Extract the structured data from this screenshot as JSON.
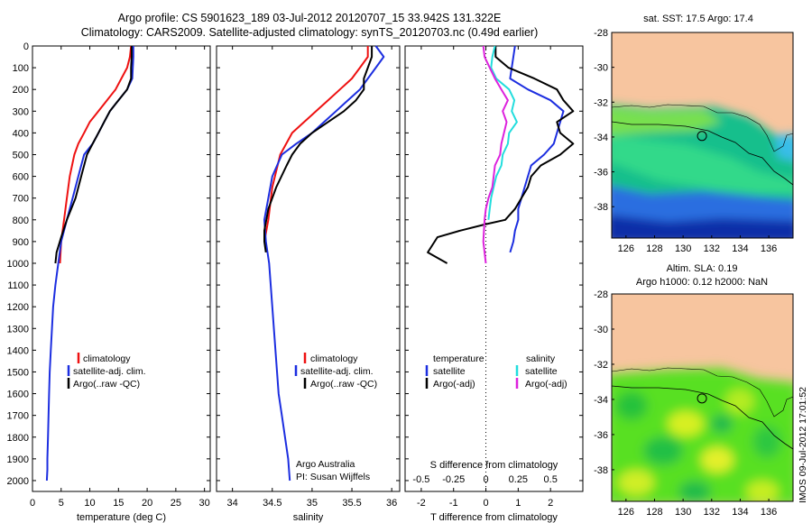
{
  "header": {
    "line1": "Argo profile: CS 5901623_189 03-Jul-2012 20120707_15 33.942S 131.322E",
    "line2": "Climatology: CARS2009. Satellite-adjusted climatology: synTS_20120703.nc (0.49d earlier)"
  },
  "colors": {
    "climatology": "#ee1111",
    "satellite": "#1c2ee0",
    "argo": "#000000",
    "salinity_satellite": "#22dddd",
    "salinity_argo": "#dd22dd",
    "land": "#f7c59f"
  },
  "chart_data": [
    {
      "type": "line",
      "panel": "temperature",
      "xlabel": "temperature (deg C)",
      "ylabel": "",
      "xlim": [
        0,
        31
      ],
      "ylim": [
        2050,
        0
      ],
      "xticks": [
        "0",
        "5",
        "10",
        "15",
        "20",
        "25",
        "30"
      ],
      "yticks": [
        "0",
        "100",
        "200",
        "300",
        "400",
        "500",
        "600",
        "700",
        "800",
        "900",
        "1000",
        "1100",
        "1200",
        "1300",
        "1400",
        "1500",
        "1600",
        "1700",
        "1800",
        "1900",
        "2000"
      ],
      "legend": {
        "placement": "lower-right",
        "entries": [
          "climatology",
          "satellite-adj. clim.",
          "Argo(..raw -QC)"
        ]
      },
      "series": [
        {
          "name": "climatology",
          "x": [
            17.2,
            17.0,
            16.5,
            15.5,
            14.5,
            13.0,
            11.5,
            10.0,
            9.0,
            8.0,
            7.3,
            6.5,
            6.0,
            5.5,
            5.0,
            4.8
          ],
          "y": [
            0,
            50,
            100,
            150,
            200,
            250,
            300,
            350,
            400,
            450,
            500,
            600,
            700,
            800,
            900,
            1000
          ]
        },
        {
          "name": "satellite-adj. clim.",
          "x": [
            17.6,
            17.6,
            17.5,
            17.4,
            16.5,
            15.0,
            13.5,
            12.5,
            11.5,
            10.5,
            9.0,
            8.0,
            7.0,
            6.0,
            5.0,
            4.5,
            4.0,
            3.6,
            3.4,
            3.2,
            3.0,
            2.9,
            2.8,
            2.7,
            2.6,
            2.6,
            2.5
          ],
          "y": [
            0,
            50,
            100,
            150,
            200,
            250,
            300,
            350,
            400,
            450,
            500,
            600,
            700,
            800,
            900,
            1000,
            1100,
            1200,
            1300,
            1400,
            1500,
            1600,
            1700,
            1800,
            1900,
            1950,
            2000
          ]
        },
        {
          "name": "Argo(..raw -QC)",
          "x": [
            17.3,
            17.3,
            17.2,
            17.2,
            16.5,
            15.0,
            13.5,
            12.5,
            11.5,
            10.5,
            9.5,
            8.5,
            7.5,
            6.0,
            5.0,
            4.2,
            4.0
          ],
          "y": [
            0,
            50,
            100,
            150,
            200,
            250,
            300,
            350,
            400,
            450,
            500,
            600,
            700,
            800,
            880,
            950,
            1000
          ]
        }
      ]
    },
    {
      "type": "line",
      "panel": "salinity",
      "xlabel": "salinity",
      "ylabel": "",
      "xlim": [
        33.8,
        36.1
      ],
      "ylim": [
        2050,
        0
      ],
      "xticks": [
        "34",
        "34.5",
        "35",
        "35.5",
        "36"
      ],
      "legend": {
        "placement": "lower-right",
        "entries": [
          "climatology",
          "satellite-adj. clim.",
          "Argo(..raw -QC)"
        ]
      },
      "annotations": [
        "Argo Australia",
        "PI: Susan Wijffels"
      ],
      "series": [
        {
          "name": "climatology",
          "x": [
            35.7,
            35.7,
            35.6,
            35.5,
            35.35,
            35.2,
            35.05,
            34.9,
            34.75,
            34.6,
            34.5,
            34.45,
            34.4
          ],
          "y": [
            0,
            50,
            100,
            150,
            200,
            250,
            300,
            350,
            400,
            500,
            650,
            800,
            900
          ]
        },
        {
          "name": "satellite-adj. clim.",
          "x": [
            35.8,
            35.9,
            35.8,
            35.7,
            35.6,
            35.45,
            35.3,
            35.15,
            35.0,
            34.8,
            34.62,
            34.5,
            34.45,
            34.4,
            34.42,
            34.46,
            34.5,
            34.54,
            34.58,
            34.62,
            34.66,
            34.7,
            34.72
          ],
          "y": [
            0,
            50,
            100,
            150,
            200,
            250,
            300,
            350,
            400,
            450,
            500,
            600,
            700,
            800,
            900,
            1000,
            1200,
            1400,
            1600,
            1700,
            1800,
            1900,
            2000
          ]
        },
        {
          "name": "Argo(..raw -QC)",
          "x": [
            35.75,
            35.75,
            35.7,
            35.65,
            35.65,
            35.55,
            35.4,
            35.2,
            35.0,
            34.85,
            34.75,
            34.68,
            34.55,
            34.45,
            34.4,
            34.4,
            34.42
          ],
          "y": [
            0,
            50,
            100,
            150,
            200,
            250,
            300,
            350,
            400,
            450,
            500,
            550,
            650,
            750,
            850,
            900,
            950
          ]
        }
      ]
    },
    {
      "type": "line",
      "panel": "differences",
      "xlabel": "T difference from climatology",
      "xlabel_top": "S difference from climatology",
      "xlim": [
        -2.5,
        3.0
      ],
      "ylim": [
        2050,
        0
      ],
      "xticks": [
        "-2",
        "-1",
        "0",
        "1",
        "2"
      ],
      "xticks_top": [
        "-0.5",
        "-0.25",
        "0",
        "0.25",
        "0.5"
      ],
      "legend": {
        "placement": "lower",
        "groups": [
          {
            "title": "temperature",
            "entries": [
              "satellite",
              "Argo(-adj)"
            ]
          },
          {
            "title": "salinity",
            "entries": [
              "satellite",
              "Argo(-adj)"
            ]
          }
        ]
      },
      "series": [
        {
          "name": "temperature satellite",
          "x": [
            0.9,
            0.85,
            0.8,
            0.75,
            1.3,
            2.0,
            2.4,
            2.3,
            2.2,
            2.1,
            1.8,
            1.4,
            1.2,
            1.0,
            1.0,
            0.9,
            0.85,
            0.75
          ],
          "y": [
            0,
            50,
            100,
            150,
            200,
            250,
            300,
            350,
            400,
            450,
            500,
            550,
            650,
            750,
            800,
            850,
            900,
            950
          ]
        },
        {
          "name": "temperature Argo(-adj)",
          "x": [
            0.3,
            0.3,
            0.7,
            1.5,
            2.2,
            2.4,
            2.7,
            2.2,
            2.3,
            2.7,
            2.3,
            1.7,
            1.4,
            1.3,
            1.1,
            0.9,
            0.6,
            0.0,
            -0.8,
            -1.5,
            -1.8,
            -1.2
          ],
          "y": [
            0,
            50,
            100,
            150,
            200,
            250,
            300,
            350,
            400,
            450,
            500,
            550,
            600,
            650,
            700,
            750,
            800,
            820,
            850,
            880,
            950,
            1000
          ]
        },
        {
          "name": "salinity satellite",
          "x": [
            0.07,
            0.05,
            0.04,
            0.08,
            0.18,
            0.22,
            0.2,
            0.24,
            0.18,
            0.17,
            0.13,
            0.12,
            0.08,
            0.06,
            0.04,
            0.03,
            0.02
          ],
          "y": [
            0,
            50,
            100,
            150,
            200,
            250,
            300,
            350,
            400,
            450,
            500,
            550,
            600,
            650,
            700,
            750,
            800
          ]
        },
        {
          "name": "salinity Argo(-adj)",
          "x": [
            -0.02,
            -0.01,
            0.03,
            0.07,
            0.12,
            0.17,
            0.13,
            0.16,
            0.14,
            0.12,
            0.11,
            0.07,
            0.05,
            0.02,
            0.0,
            -0.01,
            -0.02,
            0.0
          ],
          "y": [
            0,
            50,
            100,
            150,
            200,
            250,
            300,
            350,
            400,
            450,
            500,
            550,
            650,
            700,
            750,
            800,
            900,
            1000
          ]
        }
      ]
    },
    {
      "type": "heatmap",
      "panel": "map-sst",
      "title": "sat. SST: 17.5 Argo: 17.4",
      "xlim": [
        125,
        137.7
      ],
      "ylim": [
        -39.8,
        -28
      ],
      "xticks": [
        "126",
        "128",
        "130",
        "132",
        "134",
        "136"
      ],
      "yticks": [
        "-28",
        "-30",
        "-32",
        "-34",
        "-36",
        "-38"
      ],
      "marker": {
        "lon": 131.322,
        "lat": -33.942
      }
    },
    {
      "type": "heatmap",
      "panel": "map-sla",
      "title": "Altim. SLA: 0.19",
      "subtitle": "Argo h1000: 0.12 h2000: NaN",
      "xlim": [
        125,
        137.7
      ],
      "ylim": [
        -39.8,
        -28
      ],
      "xticks": [
        "126",
        "128",
        "130",
        "132",
        "134",
        "136"
      ],
      "yticks": [
        "-28",
        "-30",
        "-32",
        "-34",
        "-36",
        "-38"
      ],
      "marker": {
        "lon": 131.322,
        "lat": -33.942
      }
    }
  ],
  "credit": "IMOS 09-Jul-2012 17:01:52"
}
